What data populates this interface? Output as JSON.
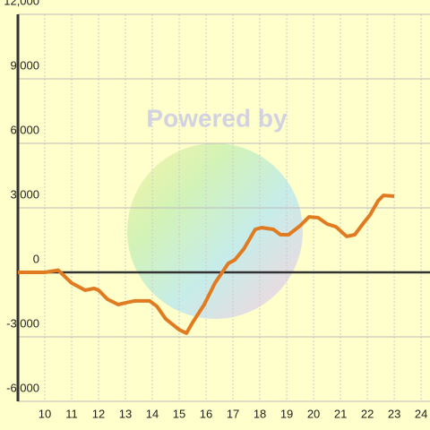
{
  "chart_data": {
    "type": "line",
    "watermark": "Powered by",
    "x": [
      9,
      10,
      10.5,
      11,
      11.5,
      11.83,
      12,
      12.33,
      12.73,
      13,
      13.33,
      13.9,
      14.17,
      14.5,
      15,
      15.27,
      15.5,
      15.93,
      16.33,
      16.83,
      17.07,
      17.4,
      17.83,
      18.07,
      18.5,
      18.77,
      19.07,
      19.5,
      19.83,
      20.17,
      20.5,
      20.83,
      21.23,
      21.53,
      21.83,
      22.1,
      22.4,
      22.6,
      23
    ],
    "series": [
      {
        "color": "#e07b22",
        "values": [
          0,
          0,
          100,
          -500,
          -830,
          -750,
          -830,
          -1250,
          -1500,
          -1420,
          -1330,
          -1330,
          -1580,
          -2170,
          -2670,
          -2830,
          -2330,
          -1500,
          -500,
          420,
          580,
          1080,
          2000,
          2080,
          2000,
          1750,
          1750,
          2170,
          2580,
          2540,
          2250,
          2120,
          1670,
          1750,
          2250,
          2670,
          3330,
          3580,
          3540
        ]
      }
    ],
    "xlim": [
      9,
      24.33
    ],
    "xticks": [
      10,
      11,
      12,
      13,
      14,
      15,
      16,
      17,
      18,
      19,
      20,
      21,
      22,
      23,
      24
    ],
    "ylim": [
      -6333,
      12000
    ],
    "yticks": [
      {
        "value": -6000,
        "label": "-6,000"
      },
      {
        "value": -3000,
        "label": "-3,000"
      },
      0,
      {
        "value": 3000,
        "label": "3,000"
      },
      {
        "value": 6000,
        "label": "6,000"
      },
      {
        "value": 9000,
        "label": "9,000"
      },
      {
        "value": 12000,
        "label": "12,000"
      }
    ],
    "grid": true
  }
}
